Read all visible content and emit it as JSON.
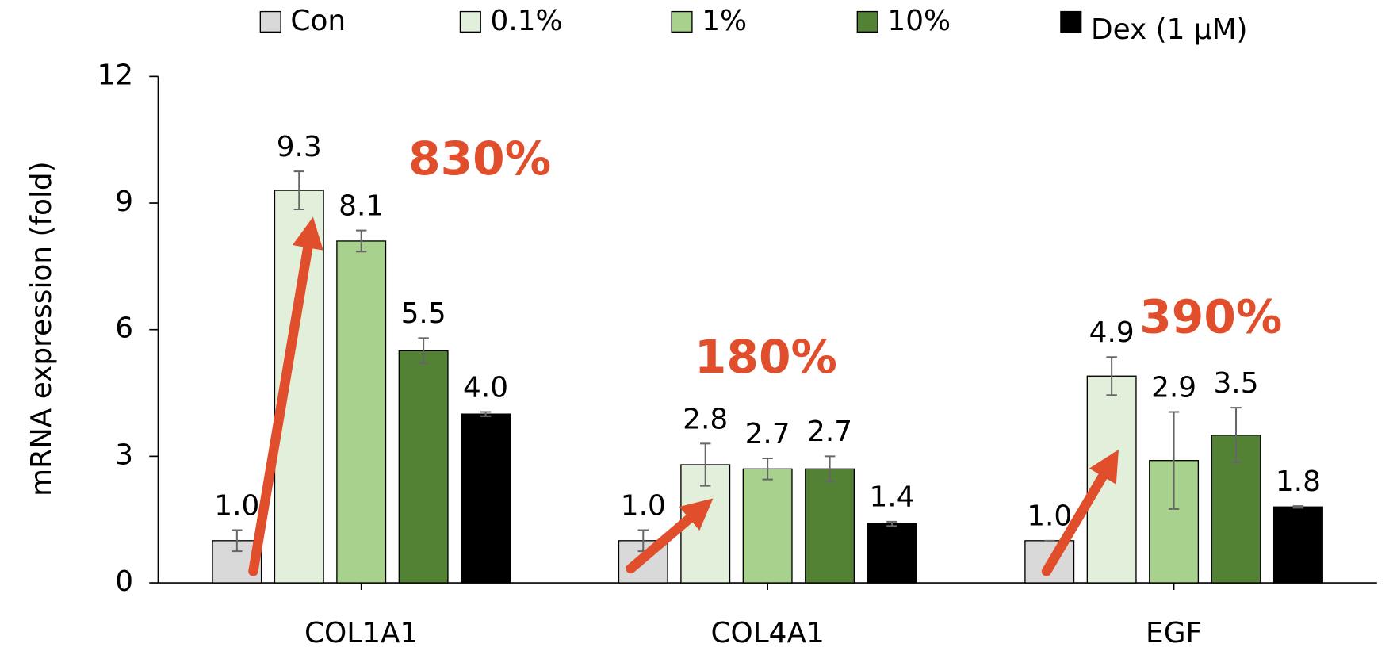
{
  "chart_data": {
    "type": "bar",
    "ylabel": "mRNA expression (fold)",
    "categories": [
      "COL1A1",
      "COL4A1",
      "EGF"
    ],
    "series": [
      {
        "name": "Con",
        "color": "#d9d9d9",
        "values": [
          1.0,
          1.0,
          1.0
        ],
        "value_labels": [
          "1.0",
          "1.0",
          "1.0"
        ],
        "errors": [
          0.25,
          0.25,
          0
        ]
      },
      {
        "name": "0.1%",
        "color": "#e2efda",
        "values": [
          9.3,
          2.8,
          4.9
        ],
        "value_labels": [
          "9.3",
          "2.8",
          "4.9"
        ],
        "errors": [
          0.45,
          0.5,
          0.45
        ]
      },
      {
        "name": "1%",
        "color": "#a9d18e",
        "values": [
          8.1,
          2.7,
          2.9
        ],
        "value_labels": [
          "8.1",
          "2.7",
          "2.9"
        ],
        "errors": [
          0.25,
          0.25,
          1.15
        ]
      },
      {
        "name": "10%",
        "color": "#548235",
        "values": [
          5.5,
          2.7,
          3.5
        ],
        "value_labels": [
          "5.5",
          "2.7",
          "3.5"
        ],
        "errors": [
          0.3,
          0.3,
          0.65
        ]
      },
      {
        "name": "Dex (1 μM)",
        "color": "#000000",
        "values": [
          4.0,
          1.4,
          1.8
        ],
        "value_labels": [
          "4.0",
          "1.4",
          "1.8"
        ],
        "errors": [
          0.05,
          0.05,
          0.02
        ]
      }
    ],
    "annotations": [
      "830%",
      "180%",
      "390%"
    ],
    "annotation_color": "#e04e2c",
    "ylim": [
      0,
      12
    ],
    "yticks": [
      0,
      3,
      6,
      9,
      12
    ],
    "legend": "top"
  }
}
